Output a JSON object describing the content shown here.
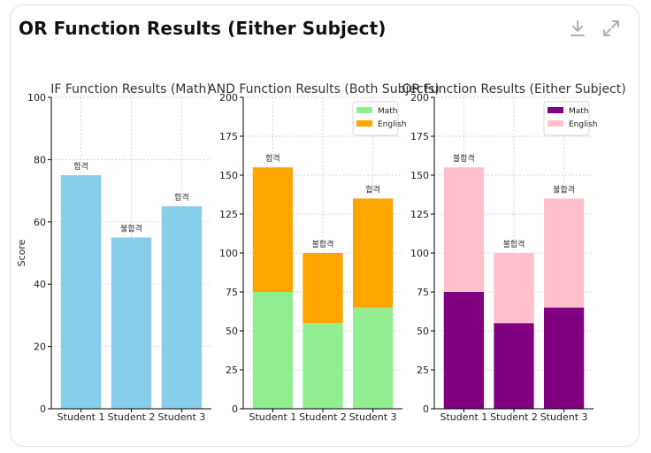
{
  "header": {
    "title": "OR Function Results (Either Subject)",
    "download_icon": "download-icon",
    "expand_icon": "expand-icon"
  },
  "chart_data": [
    {
      "type": "bar",
      "title": "IF Function Results (Math)",
      "xlabel": "",
      "ylabel": "Score",
      "categories": [
        "Student 1",
        "Student 2",
        "Student 3"
      ],
      "ylim": [
        0,
        100
      ],
      "yticks": [
        0,
        20,
        40,
        60,
        80,
        100
      ],
      "series": [
        {
          "values": [
            75,
            55,
            65
          ],
          "color": "#87ceeb"
        }
      ],
      "bar_labels": [
        "합격",
        "불합격",
        "합격"
      ],
      "grid": true,
      "legend": "none"
    },
    {
      "type": "bar",
      "stacked": true,
      "title": "AND Function Results (Both Subjects)",
      "xlabel": "",
      "ylabel": "",
      "categories": [
        "Student 1",
        "Student 2",
        "Student 3"
      ],
      "ylim": [
        0,
        200
      ],
      "yticks": [
        0,
        25,
        50,
        75,
        100,
        125,
        150,
        175,
        200
      ],
      "series": [
        {
          "name": "Math",
          "values": [
            75,
            55,
            65
          ],
          "color": "#90ee90"
        },
        {
          "name": "English",
          "values": [
            80,
            45,
            70
          ],
          "color": "#ffa500"
        }
      ],
      "bar_labels": [
        "합격",
        "불합격",
        "합격"
      ],
      "grid": true,
      "legend": "top-right"
    },
    {
      "type": "bar",
      "stacked": true,
      "title": "OR Function Results (Either Subject)",
      "xlabel": "",
      "ylabel": "",
      "categories": [
        "Student 1",
        "Student 2",
        "Student 3"
      ],
      "ylim": [
        0,
        200
      ],
      "yticks": [
        0,
        25,
        50,
        75,
        100,
        125,
        150,
        175,
        200
      ],
      "series": [
        {
          "name": "Math",
          "values": [
            75,
            55,
            65
          ],
          "color": "#800080"
        },
        {
          "name": "English",
          "values": [
            80,
            45,
            70
          ],
          "color": "#ffc0cb"
        }
      ],
      "bar_labels": [
        "불합격",
        "불합격",
        "불합격"
      ],
      "grid": true,
      "legend": "top-right"
    }
  ]
}
